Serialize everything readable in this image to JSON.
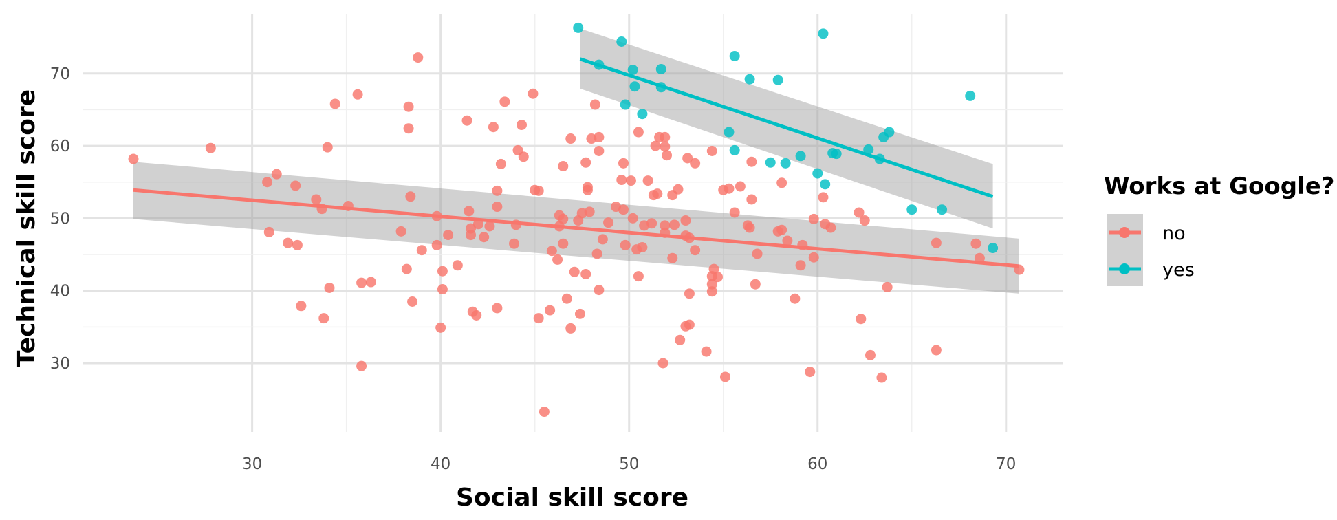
{
  "chart_data": {
    "type": "scatter",
    "title": "",
    "xlabel": "Social skill score",
    "ylabel": "Technical skill score",
    "xlim": [
      21,
      73
    ],
    "ylim": [
      20.5,
      79
    ],
    "x_ticks": [
      "30",
      "40",
      "50",
      "60",
      "70"
    ],
    "y_ticks": [
      "30",
      "40",
      "50",
      "60",
      "70"
    ],
    "grid": true,
    "legend": {
      "title": "Works at Google?",
      "position": "right"
    },
    "series": [
      {
        "name": "no",
        "color": "#F8766D",
        "points": [
          [
            23.7,
            58.2
          ],
          [
            27.8,
            59.7
          ],
          [
            30.8,
            55.0
          ],
          [
            31.3,
            56.1
          ],
          [
            32.3,
            54.5
          ],
          [
            31.9,
            46.6
          ],
          [
            30.9,
            48.1
          ],
          [
            32.4,
            46.3
          ],
          [
            32.6,
            37.9
          ],
          [
            33.4,
            52.6
          ],
          [
            33.7,
            51.3
          ],
          [
            33.8,
            36.2
          ],
          [
            34.0,
            59.8
          ],
          [
            34.1,
            40.4
          ],
          [
            34.4,
            65.8
          ],
          [
            35.1,
            51.7
          ],
          [
            35.6,
            67.1
          ],
          [
            35.8,
            41.1
          ],
          [
            35.8,
            29.6
          ],
          [
            36.3,
            41.2
          ],
          [
            37.9,
            48.2
          ],
          [
            38.2,
            43.0
          ],
          [
            38.3,
            62.4
          ],
          [
            38.3,
            65.4
          ],
          [
            38.4,
            53.0
          ],
          [
            38.5,
            38.5
          ],
          [
            38.8,
            72.2
          ],
          [
            39.0,
            45.6
          ],
          [
            39.8,
            50.3
          ],
          [
            39.8,
            46.3
          ],
          [
            40.1,
            42.7
          ],
          [
            40.1,
            40.2
          ],
          [
            40.0,
            34.9
          ],
          [
            40.4,
            47.7
          ],
          [
            40.9,
            43.5
          ],
          [
            41.4,
            63.5
          ],
          [
            41.5,
            51.0
          ],
          [
            41.6,
            47.7
          ],
          [
            41.6,
            48.6
          ],
          [
            41.7,
            37.1
          ],
          [
            41.9,
            36.6
          ],
          [
            42.0,
            49.2
          ],
          [
            42.3,
            47.4
          ],
          [
            42.6,
            48.9
          ],
          [
            42.8,
            62.6
          ],
          [
            43.0,
            53.8
          ],
          [
            43.0,
            51.6
          ],
          [
            43.0,
            37.6
          ],
          [
            43.2,
            57.5
          ],
          [
            43.4,
            66.1
          ],
          [
            43.9,
            46.5
          ],
          [
            44.0,
            49.1
          ],
          [
            44.1,
            59.4
          ],
          [
            44.3,
            62.9
          ],
          [
            44.4,
            58.5
          ],
          [
            44.9,
            67.2
          ],
          [
            45.0,
            53.9
          ],
          [
            45.2,
            53.8
          ],
          [
            45.2,
            36.2
          ],
          [
            45.5,
            23.3
          ],
          [
            45.8,
            37.3
          ],
          [
            45.9,
            45.5
          ],
          [
            46.2,
            44.3
          ],
          [
            46.3,
            50.4
          ],
          [
            46.3,
            48.9
          ],
          [
            46.5,
            57.2
          ],
          [
            46.5,
            49.9
          ],
          [
            46.5,
            46.5
          ],
          [
            46.7,
            38.9
          ],
          [
            46.9,
            61.0
          ],
          [
            46.9,
            34.8
          ],
          [
            47.1,
            42.6
          ],
          [
            47.3,
            49.7
          ],
          [
            47.4,
            36.8
          ],
          [
            47.5,
            50.7
          ],
          [
            47.7,
            57.7
          ],
          [
            47.7,
            42.3
          ],
          [
            47.8,
            54.3
          ],
          [
            47.8,
            53.9
          ],
          [
            47.9,
            50.9
          ],
          [
            48.0,
            61.0
          ],
          [
            48.2,
            65.7
          ],
          [
            48.3,
            45.1
          ],
          [
            48.4,
            61.2
          ],
          [
            48.4,
            59.3
          ],
          [
            48.4,
            40.1
          ],
          [
            48.6,
            47.1
          ],
          [
            48.9,
            49.4
          ],
          [
            49.3,
            51.6
          ],
          [
            49.6,
            55.3
          ],
          [
            49.7,
            51.2
          ],
          [
            49.7,
            57.6
          ],
          [
            49.8,
            46.3
          ],
          [
            50.1,
            55.2
          ],
          [
            50.2,
            50.0
          ],
          [
            50.4,
            45.7
          ],
          [
            50.5,
            42.0
          ],
          [
            50.5,
            61.9
          ],
          [
            50.7,
            46.0
          ],
          [
            50.8,
            49.0
          ],
          [
            51.0,
            55.2
          ],
          [
            51.2,
            49.3
          ],
          [
            51.3,
            53.2
          ],
          [
            51.4,
            60.0
          ],
          [
            51.5,
            53.4
          ],
          [
            51.6,
            61.2
          ],
          [
            51.8,
            30.0
          ],
          [
            51.9,
            49.0
          ],
          [
            51.9,
            61.2
          ],
          [
            51.9,
            59.9
          ],
          [
            51.9,
            48.0
          ],
          [
            52.0,
            58.7
          ],
          [
            52.3,
            53.2
          ],
          [
            52.3,
            44.5
          ],
          [
            52.4,
            49.1
          ],
          [
            52.6,
            54.0
          ],
          [
            52.7,
            33.2
          ],
          [
            53.0,
            49.7
          ],
          [
            53.0,
            47.6
          ],
          [
            53.0,
            35.1
          ],
          [
            53.1,
            58.3
          ],
          [
            53.2,
            47.3
          ],
          [
            53.2,
            35.3
          ],
          [
            53.2,
            39.6
          ],
          [
            53.5,
            45.6
          ],
          [
            53.5,
            57.6
          ],
          [
            54.1,
            31.6
          ],
          [
            54.4,
            59.3
          ],
          [
            54.4,
            42.0
          ],
          [
            54.4,
            40.9
          ],
          [
            54.4,
            39.9
          ],
          [
            54.5,
            43.0
          ],
          [
            54.7,
            41.9
          ],
          [
            55.0,
            53.9
          ],
          [
            55.1,
            28.1
          ],
          [
            55.3,
            54.1
          ],
          [
            55.6,
            50.8
          ],
          [
            55.9,
            54.4
          ],
          [
            56.3,
            49.0
          ],
          [
            56.4,
            48.7
          ],
          [
            56.5,
            57.8
          ],
          [
            56.5,
            52.6
          ],
          [
            56.7,
            40.9
          ],
          [
            56.8,
            45.1
          ],
          [
            57.9,
            48.2
          ],
          [
            58.1,
            54.9
          ],
          [
            58.1,
            48.4
          ],
          [
            58.4,
            46.9
          ],
          [
            58.8,
            38.9
          ],
          [
            59.1,
            43.5
          ],
          [
            59.2,
            46.3
          ],
          [
            59.6,
            28.8
          ],
          [
            59.8,
            49.9
          ],
          [
            59.8,
            44.6
          ],
          [
            60.3,
            52.9
          ],
          [
            60.4,
            49.2
          ],
          [
            60.7,
            48.7
          ],
          [
            62.2,
            50.8
          ],
          [
            62.3,
            36.1
          ],
          [
            62.5,
            49.7
          ],
          [
            62.8,
            31.1
          ],
          [
            63.4,
            28.0
          ],
          [
            63.7,
            40.5
          ],
          [
            66.3,
            31.8
          ],
          [
            66.3,
            46.6
          ],
          [
            68.4,
            46.5
          ],
          [
            68.6,
            44.5
          ],
          [
            70.7,
            42.9
          ]
        ],
        "fit": {
          "x": [
            23.7,
            70.7
          ],
          "y": [
            53.9,
            43.4
          ],
          "band_lower": [
            49.9,
            39.6
          ],
          "band_upper": [
            57.8,
            47.2
          ]
        }
      },
      {
        "name": "yes",
        "color": "#00BFC4",
        "points": [
          [
            47.3,
            76.3
          ],
          [
            48.4,
            71.2
          ],
          [
            49.6,
            74.4
          ],
          [
            49.8,
            65.7
          ],
          [
            50.2,
            70.5
          ],
          [
            50.3,
            68.2
          ],
          [
            50.7,
            64.4
          ],
          [
            51.7,
            70.6
          ],
          [
            51.7,
            68.1
          ],
          [
            55.3,
            61.9
          ],
          [
            55.6,
            72.4
          ],
          [
            55.6,
            59.4
          ],
          [
            56.4,
            69.2
          ],
          [
            57.5,
            57.7
          ],
          [
            57.9,
            69.1
          ],
          [
            58.3,
            57.6
          ],
          [
            59.1,
            58.6
          ],
          [
            60.0,
            56.2
          ],
          [
            60.3,
            75.5
          ],
          [
            60.4,
            54.7
          ],
          [
            60.8,
            59.0
          ],
          [
            61.0,
            58.9
          ],
          [
            62.7,
            59.5
          ],
          [
            63.3,
            58.2
          ],
          [
            63.5,
            61.2
          ],
          [
            63.8,
            61.9
          ],
          [
            65.0,
            51.2
          ],
          [
            66.6,
            51.2
          ],
          [
            68.1,
            66.9
          ],
          [
            69.3,
            45.9
          ]
        ],
        "fit": {
          "x": [
            47.4,
            69.3
          ],
          "y": [
            72.0,
            53.0
          ],
          "band_lower": [
            67.9,
            48.6
          ],
          "band_upper": [
            76.2,
            57.5
          ]
        }
      }
    ]
  }
}
